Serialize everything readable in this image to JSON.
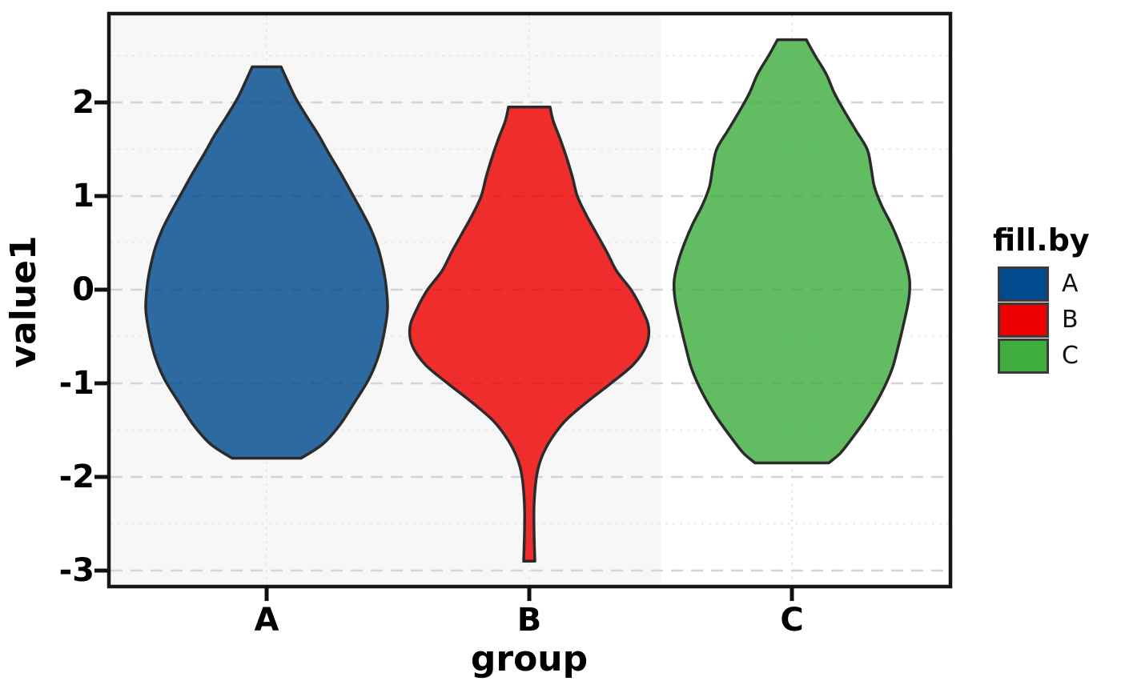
{
  "figure": {
    "background": "#ffffff",
    "panel_background": "#f7f7f7",
    "panel_highlight_background": "#ffffff",
    "panel_border_color": "#161616",
    "major_grid_color": "#d4d4d4",
    "minor_grid_color": "#e8e8e8",
    "vertical_grid_color": "#e3e3e3",
    "tick_color": "#111111"
  },
  "axis_y": {
    "title": "value1",
    "ticks": [
      "2",
      "1",
      "0",
      "-1",
      "-2",
      "-3"
    ],
    "tick_values": [
      2,
      1,
      0,
      -1,
      -2,
      -3
    ],
    "minor_tick_values": [
      2.5,
      1.5,
      0.5,
      -0.5,
      -1.5,
      -2.5
    ]
  },
  "axis_x": {
    "title": "group",
    "ticks": [
      "A",
      "B",
      "C"
    ]
  },
  "legend": {
    "title": "fill.by",
    "items": [
      {
        "label": "A",
        "color": "#004A8E"
      },
      {
        "label": "B",
        "color": "#EE0000"
      },
      {
        "label": "C",
        "color": "#3FAE3F"
      }
    ]
  },
  "chart_data": {
    "type": "violin",
    "title": "",
    "xlabel": "group",
    "ylabel": "value1",
    "categories": [
      "A",
      "B",
      "C"
    ],
    "y_axis_range": [
      -3.2,
      2.95
    ],
    "grid": {
      "major": "dashed",
      "minor": "dotted",
      "vertical": "dotted"
    },
    "legend_position": "right",
    "legend_title": "fill.by",
    "fill_opacity": 0.82,
    "outline_color": "#2b2b2b",
    "violins": [
      {
        "group": "A",
        "color": "#004A8E",
        "min_value": -1.8,
        "max_value": 2.38,
        "widest_at": -0.2,
        "profile": [
          [
            2.38,
            18
          ],
          [
            2.25,
            25
          ],
          [
            2.05,
            36
          ],
          [
            1.85,
            50
          ],
          [
            1.65,
            65
          ],
          [
            1.45,
            78
          ],
          [
            1.25,
            92
          ],
          [
            1.05,
            105
          ],
          [
            0.85,
            118
          ],
          [
            0.65,
            130
          ],
          [
            0.45,
            139
          ],
          [
            0.25,
            145
          ],
          [
            0.05,
            149
          ],
          [
            -0.2,
            151
          ],
          [
            -0.45,
            147
          ],
          [
            -0.7,
            140
          ],
          [
            -0.95,
            128
          ],
          [
            -1.2,
            110
          ],
          [
            -1.45,
            91
          ],
          [
            -1.65,
            70
          ],
          [
            -1.8,
            43
          ]
        ]
      },
      {
        "group": "B",
        "color": "#EE0000",
        "min_value": -2.9,
        "max_value": 1.95,
        "widest_at": -0.4,
        "profile": [
          [
            1.95,
            26
          ],
          [
            1.8,
            30
          ],
          [
            1.6,
            39
          ],
          [
            1.4,
            47
          ],
          [
            1.2,
            54
          ],
          [
            1.0,
            60
          ],
          [
            0.8,
            71
          ],
          [
            0.6,
            84
          ],
          [
            0.4,
            97
          ],
          [
            0.2,
            109
          ],
          [
            0.0,
            127
          ],
          [
            -0.2,
            140
          ],
          [
            -0.4,
            149
          ],
          [
            -0.6,
            146
          ],
          [
            -0.8,
            130
          ],
          [
            -1.0,
            102
          ],
          [
            -1.2,
            72
          ],
          [
            -1.4,
            45
          ],
          [
            -1.6,
            27
          ],
          [
            -1.8,
            15
          ],
          [
            -2.0,
            9
          ],
          [
            -2.3,
            6
          ],
          [
            -2.6,
            6
          ],
          [
            -2.9,
            7
          ]
        ]
      },
      {
        "group": "C",
        "color": "#3FAE3F",
        "min_value": -1.85,
        "max_value": 2.67,
        "widest_at": 0.1,
        "profile": [
          [
            2.67,
            18
          ],
          [
            2.5,
            29
          ],
          [
            2.3,
            43
          ],
          [
            2.1,
            53
          ],
          [
            1.9,
            66
          ],
          [
            1.7,
            80
          ],
          [
            1.5,
            94
          ],
          [
            1.3,
            99
          ],
          [
            1.1,
            103
          ],
          [
            0.9,
            112
          ],
          [
            0.7,
            124
          ],
          [
            0.5,
            134
          ],
          [
            0.3,
            142
          ],
          [
            0.1,
            147
          ],
          [
            -0.1,
            146
          ],
          [
            -0.35,
            140
          ],
          [
            -0.6,
            133
          ],
          [
            -0.85,
            125
          ],
          [
            -1.1,
            112
          ],
          [
            -1.35,
            95
          ],
          [
            -1.6,
            74
          ],
          [
            -1.75,
            60
          ],
          [
            -1.85,
            46
          ]
        ]
      }
    ]
  }
}
